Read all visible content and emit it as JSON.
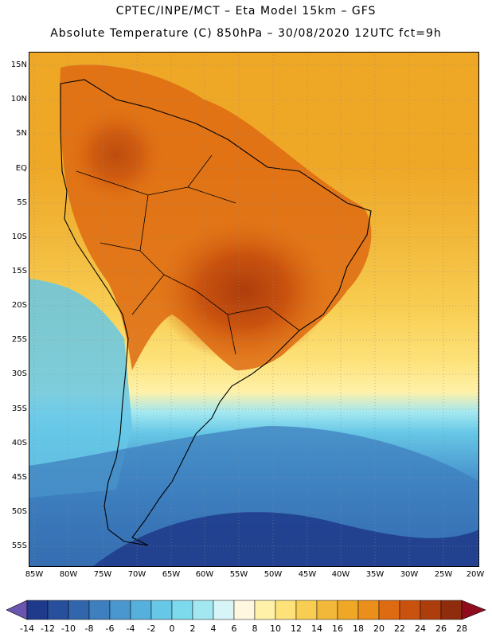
{
  "header": {
    "line1": "CPTEC/INPE/MCT –  Eta Model 15km – GFS",
    "line2": "Absolute Temperature (C) 850hPa – 30/08/2020 12UTC fct=9h"
  },
  "axes": {
    "lat_labels": [
      "15N",
      "10N",
      "5N",
      "EQ",
      "5S",
      "10S",
      "15S",
      "20S",
      "25S",
      "30S",
      "35S",
      "40S",
      "45S",
      "50S",
      "55S"
    ],
    "lon_labels": [
      "85W",
      "80W",
      "75W",
      "70W",
      "65W",
      "60W",
      "55W",
      "50W",
      "45W",
      "40W",
      "35W",
      "30W",
      "25W",
      "20W"
    ]
  },
  "colorbar": {
    "labels": [
      "-14",
      "-12",
      "-10",
      "-8",
      "-6",
      "-4",
      "-2",
      "0",
      "2",
      "4",
      "6",
      "8",
      "10",
      "12",
      "14",
      "16",
      "18",
      "20",
      "22",
      "24",
      "26",
      "28"
    ],
    "colors": [
      "#1f3a8a",
      "#284f9c",
      "#3166ad",
      "#3d7fbf",
      "#4a97cf",
      "#56b0dc",
      "#66c7e6",
      "#7dd9ec",
      "#a3e8f1",
      "#d7f4f6",
      "#fff7e0",
      "#fff1a8",
      "#fde27a",
      "#f8ce52",
      "#f2b83a",
      "#efa726",
      "#ea8e1c",
      "#de6a12",
      "#c9520e",
      "#ad3d0c",
      "#8f2c0b",
      "#6f1d08"
    ],
    "under_color": "#6a55b0",
    "over_color": "#8f0c1e"
  }
}
